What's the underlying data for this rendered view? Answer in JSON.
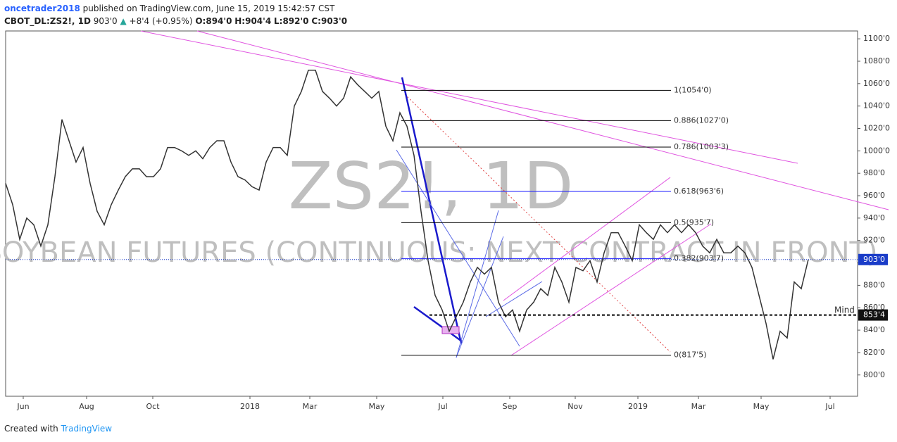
{
  "header": {
    "user": "oncetrader2018",
    "published": "published on TradingView.com, June 15, 2019 15:42:57 CST",
    "symbol": "CBOT_DL:ZS2!, 1D",
    "last": "903'0",
    "change": "+8'4 (+0.95%)",
    "open": "O:894'0",
    "high": "H:904'4",
    "low": "L:892'0",
    "close": "C:903'0"
  },
  "footer": {
    "created": "Created with",
    "brand": "TradingView"
  },
  "chart_data": {
    "type": "line",
    "watermark": "ZS2!, 1D",
    "subtitle": "SOYBEAN FUTURES (CONTINUOUS: NEXT CONTRACT IN FRONT)",
    "color": "#333333",
    "values": [
      971,
      952,
      921,
      940,
      934,
      915,
      934,
      977,
      1028,
      1009,
      990,
      1003,
      971,
      946,
      934,
      952,
      965,
      977,
      984,
      984,
      977,
      977,
      984,
      1003,
      1003,
      1000,
      996,
      1000,
      993,
      1003,
      1009,
      1009,
      990,
      977,
      974,
      968,
      965,
      990,
      1003,
      1003,
      996,
      1040,
      1053,
      1072,
      1072,
      1053,
      1047,
      1040,
      1047,
      1066,
      1059,
      1053,
      1047,
      1053,
      1022,
      1009,
      1034,
      1022,
      996,
      946,
      902,
      871,
      858,
      839,
      852,
      865,
      883,
      896,
      890,
      896,
      865,
      852,
      858,
      839,
      858,
      865,
      877,
      871,
      896,
      883,
      865,
      896,
      893,
      902,
      883,
      909,
      927,
      927,
      915,
      902,
      934,
      927,
      921,
      934,
      927,
      934,
      927,
      934,
      927,
      915,
      909,
      921,
      909,
      909,
      915,
      909,
      896,
      871,
      846,
      814,
      839,
      833,
      883,
      877,
      903
    ],
    "xlim": [
      0,
      121
    ],
    "xticks": [
      {
        "value": 2.5,
        "label": "Jun"
      },
      {
        "value": 11.5,
        "label": "Aug"
      },
      {
        "value": 20.9,
        "label": "Oct"
      },
      {
        "value": 34.7,
        "label": "2018"
      },
      {
        "value": 43.2,
        "label": "Mar"
      },
      {
        "value": 52.7,
        "label": "May"
      },
      {
        "value": 62.1,
        "label": "Jul"
      },
      {
        "value": 71.6,
        "label": "Sep"
      },
      {
        "value": 80.9,
        "label": "Nov"
      },
      {
        "value": 89.8,
        "label": "2019"
      },
      {
        "value": 98.4,
        "label": "Mar"
      },
      {
        "value": 107.3,
        "label": "May"
      },
      {
        "value": 117.1,
        "label": "Jul"
      }
    ],
    "ylim": [
      781,
      1107
    ],
    "yticks": [
      {
        "value": 800,
        "label": "800'0"
      },
      {
        "value": 820,
        "label": "820'0"
      },
      {
        "value": 840,
        "label": "840'0"
      },
      {
        "value": 860,
        "label": "860'0"
      },
      {
        "value": 880,
        "label": "880'0"
      },
      {
        "value": 900,
        "label": "900'0"
      },
      {
        "value": 920,
        "label": "920'0"
      },
      {
        "value": 940,
        "label": "940'0"
      },
      {
        "value": 960,
        "label": "960'0"
      },
      {
        "value": 980,
        "label": "980'0"
      },
      {
        "value": 1000,
        "label": "1000'0"
      },
      {
        "value": 1020,
        "label": "1020'0"
      },
      {
        "value": 1040,
        "label": "1040'0"
      },
      {
        "value": 1060,
        "label": "1060'0"
      },
      {
        "value": 1080,
        "label": "1080'0"
      },
      {
        "value": 1100,
        "label": "1100'0"
      }
    ],
    "fib_levels": [
      {
        "value": 1054,
        "label": "1(1054'0)",
        "color": "#000000"
      },
      {
        "value": 1027,
        "label": "0.886(1027'0)",
        "color": "#000000"
      },
      {
        "value": 1003.375,
        "label": "0.786(1003'3)",
        "color": "#000000"
      },
      {
        "value": 963.75,
        "label": "0.618(963'6)",
        "color": "#1a1aff"
      },
      {
        "value": 935.875,
        "label": "0.5(935'7)",
        "color": "#000000"
      },
      {
        "value": 903.875,
        "label": "0.382(903'7)",
        "color": "#1a1aff"
      },
      {
        "value": 817.625,
        "label": "0(817'5)",
        "color": "#000000"
      }
    ],
    "price_line": {
      "value": 903,
      "label": "903'0",
      "color": "#1a3cc8"
    },
    "mind_line": {
      "value": 853.5,
      "label": "853'4",
      "name": "Mind"
    }
  }
}
